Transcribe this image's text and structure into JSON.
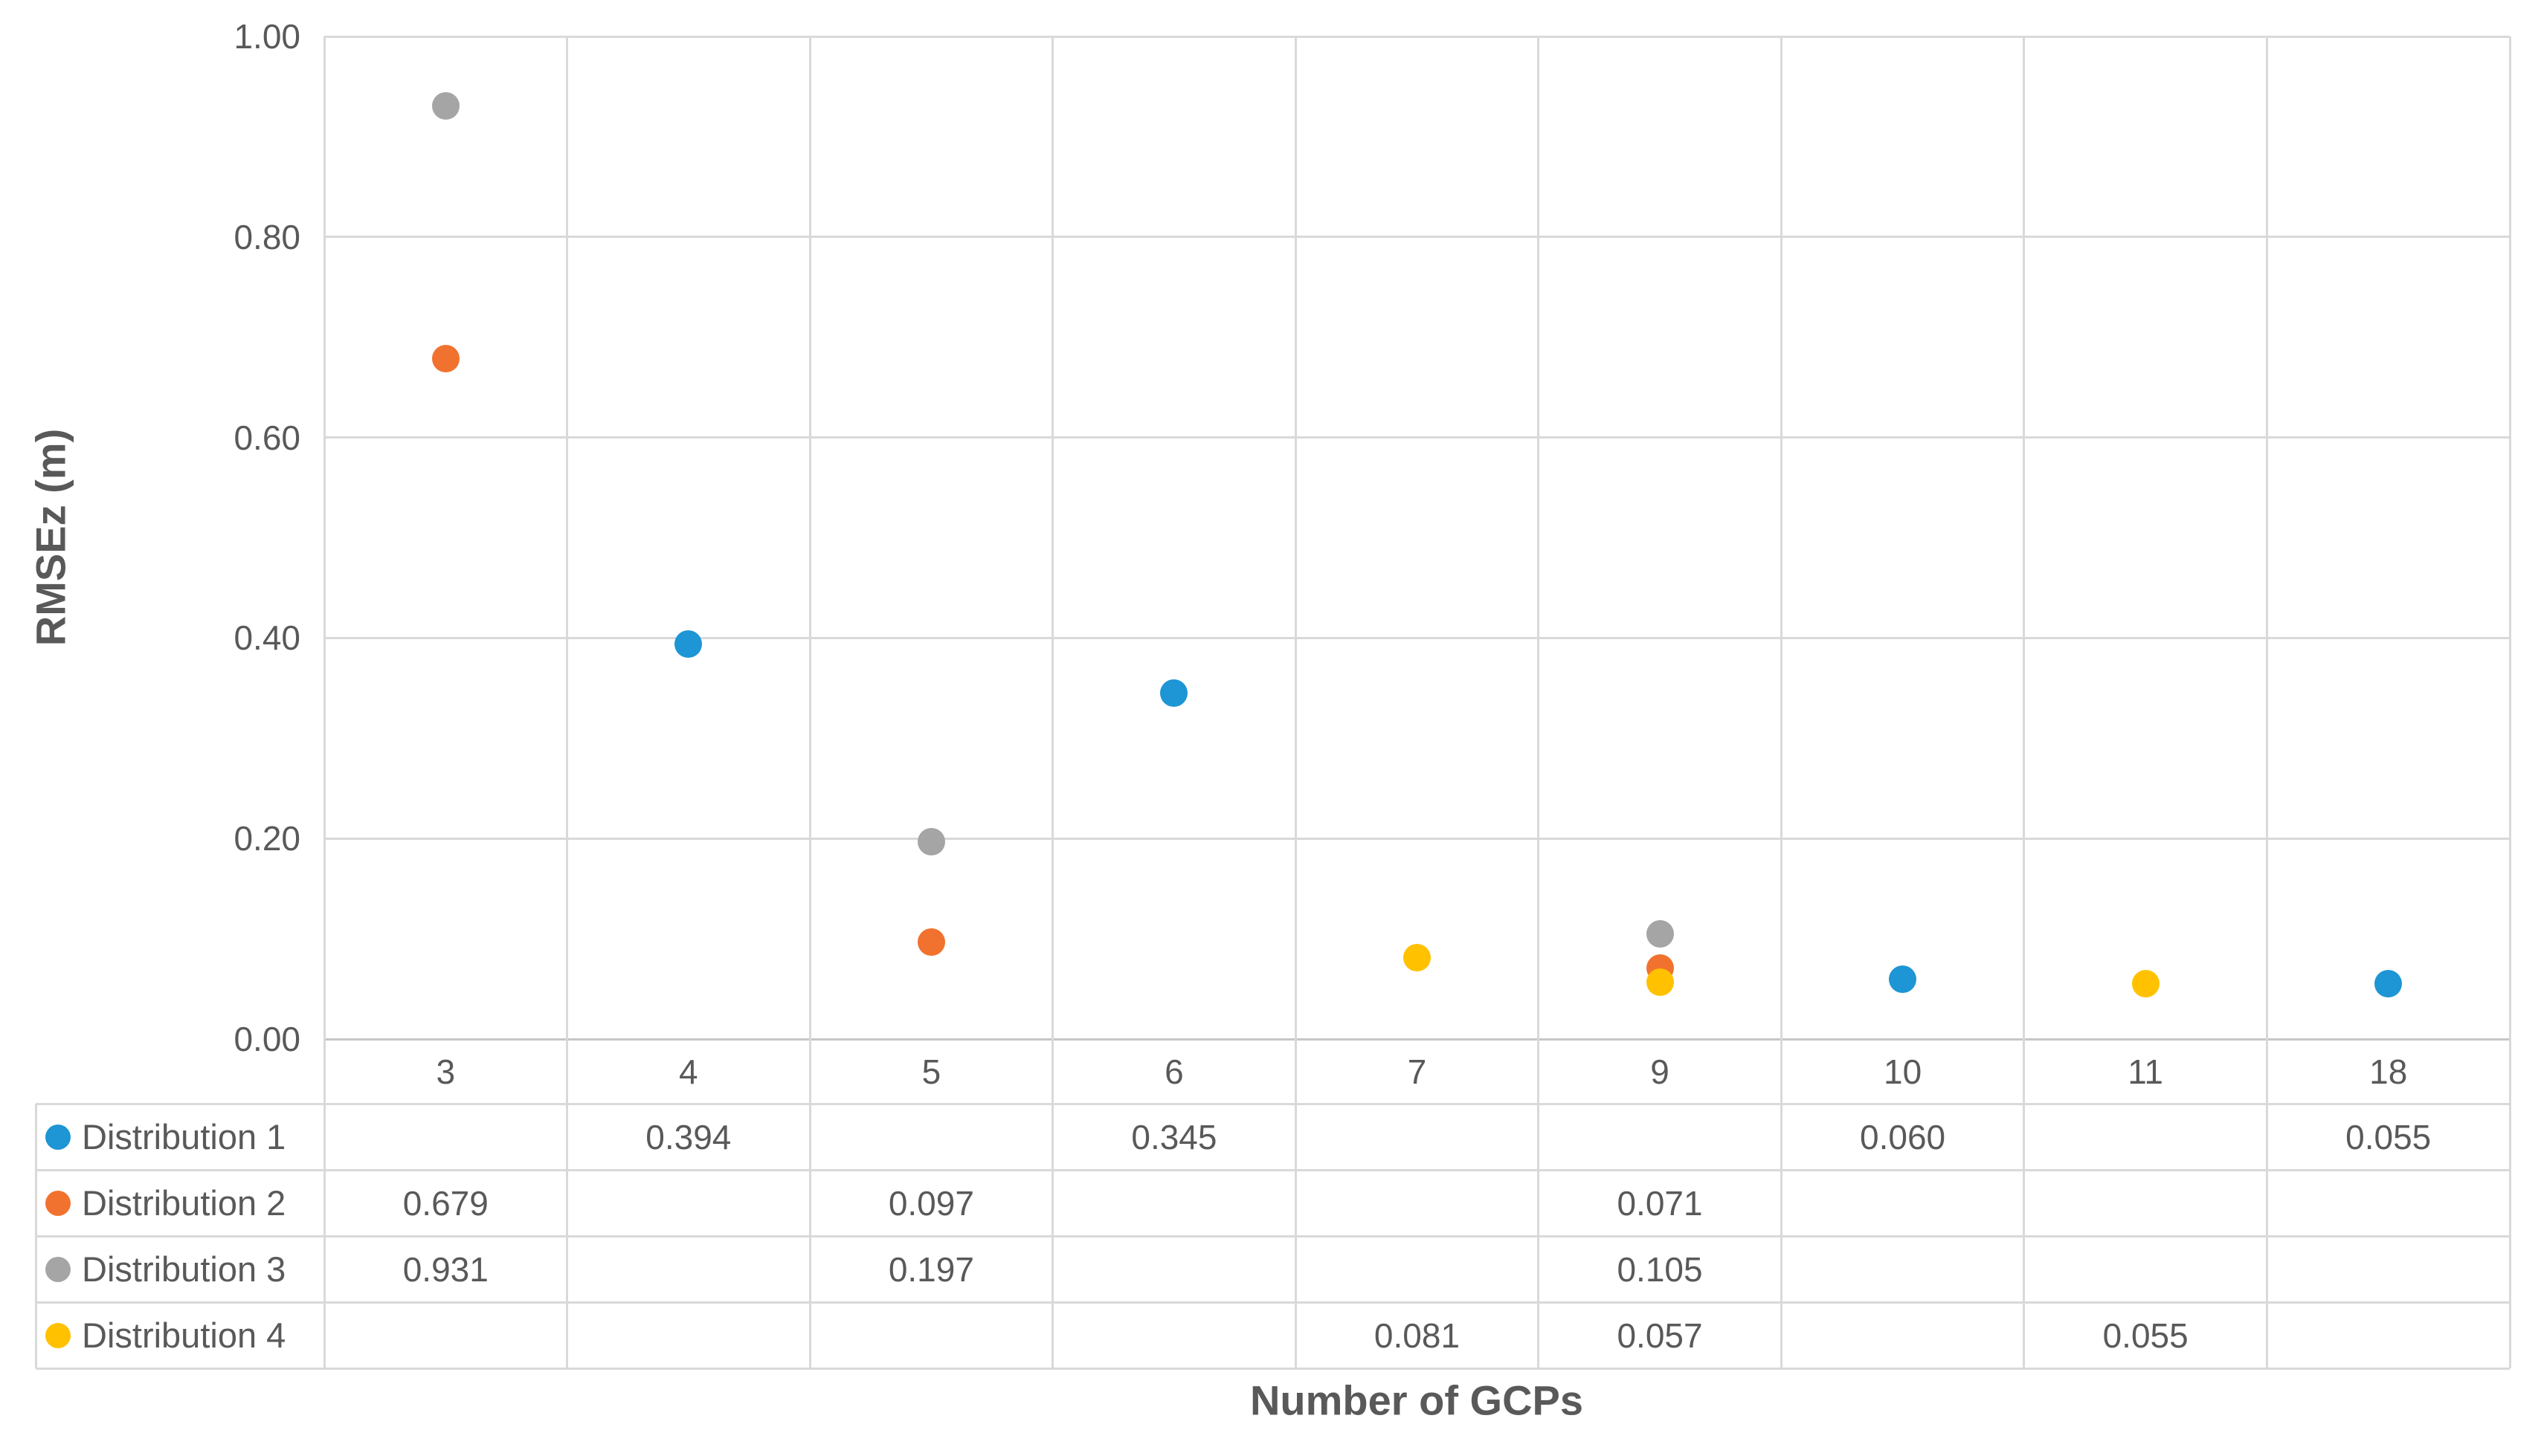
{
  "chart_data": {
    "type": "scatter",
    "title": "",
    "xlabel": "Number of GCPs",
    "ylabel": "RMSEz (m)",
    "categories": [
      "3",
      "4",
      "5",
      "6",
      "7",
      "9",
      "10",
      "11",
      "18"
    ],
    "y_ticks": [
      "1.00",
      "0.80",
      "0.60",
      "0.40",
      "0.20",
      "0.00"
    ],
    "ylim": [
      0.0,
      1.0
    ],
    "grid": true,
    "legend_position": "table-left",
    "value_format": "0.000",
    "series": [
      {
        "name": "Distribution 1",
        "color": "#1E95D4",
        "values": [
          null,
          0.394,
          null,
          0.345,
          null,
          null,
          0.06,
          null,
          0.055
        ]
      },
      {
        "name": "Distribution 2",
        "color": "#F1722E",
        "values": [
          0.679,
          null,
          0.097,
          null,
          null,
          0.071,
          null,
          null,
          null
        ]
      },
      {
        "name": "Distribution 3",
        "color": "#A5A5A5",
        "values": [
          0.931,
          null,
          0.197,
          null,
          null,
          0.105,
          null,
          null,
          null
        ]
      },
      {
        "name": "Distribution 4",
        "color": "#FFC100",
        "values": [
          null,
          null,
          null,
          null,
          0.081,
          0.057,
          null,
          0.055,
          null
        ]
      }
    ],
    "colors": {
      "gridline": "#D9D9D9",
      "axis_line": "#C6C6C6",
      "text": "#595959"
    }
  }
}
